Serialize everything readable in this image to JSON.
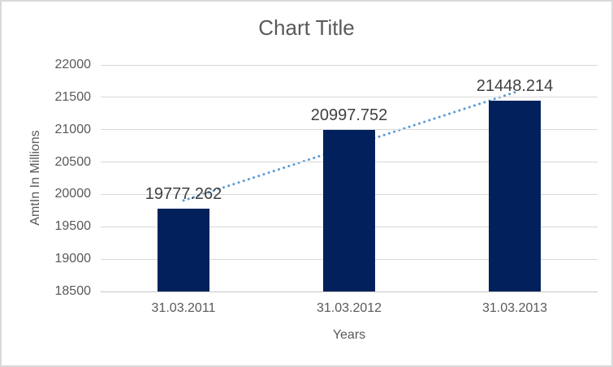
{
  "colors": {
    "bar": "#02215c",
    "trend": "#5b9bd5",
    "grid": "#d9d9d9",
    "axis": "#c6c6c6",
    "text": "#595959",
    "data_label": "#404040",
    "border": "#d9d9d9",
    "background": "#ffffff"
  },
  "chart_data": {
    "type": "bar",
    "title": "Chart Title",
    "categories": [
      "31.03.2011",
      "31.03.2012",
      "31.03.2013"
    ],
    "values": [
      19777.262,
      20997.752,
      21448.214
    ],
    "data_labels": [
      "19777.262",
      "20997.752",
      "21448.214"
    ],
    "xlabel": "Years",
    "ylabel": "AmtIn In Millions",
    "ylim": [
      18500,
      22000
    ],
    "ytick_step": 500,
    "yticks": [
      22000,
      21500,
      21000,
      20500,
      20000,
      19500,
      19000,
      18500
    ],
    "grid": true,
    "legend": false,
    "bar_color_name": "dark-navy",
    "trendline": {
      "type": "linear",
      "style": "dotted"
    }
  }
}
